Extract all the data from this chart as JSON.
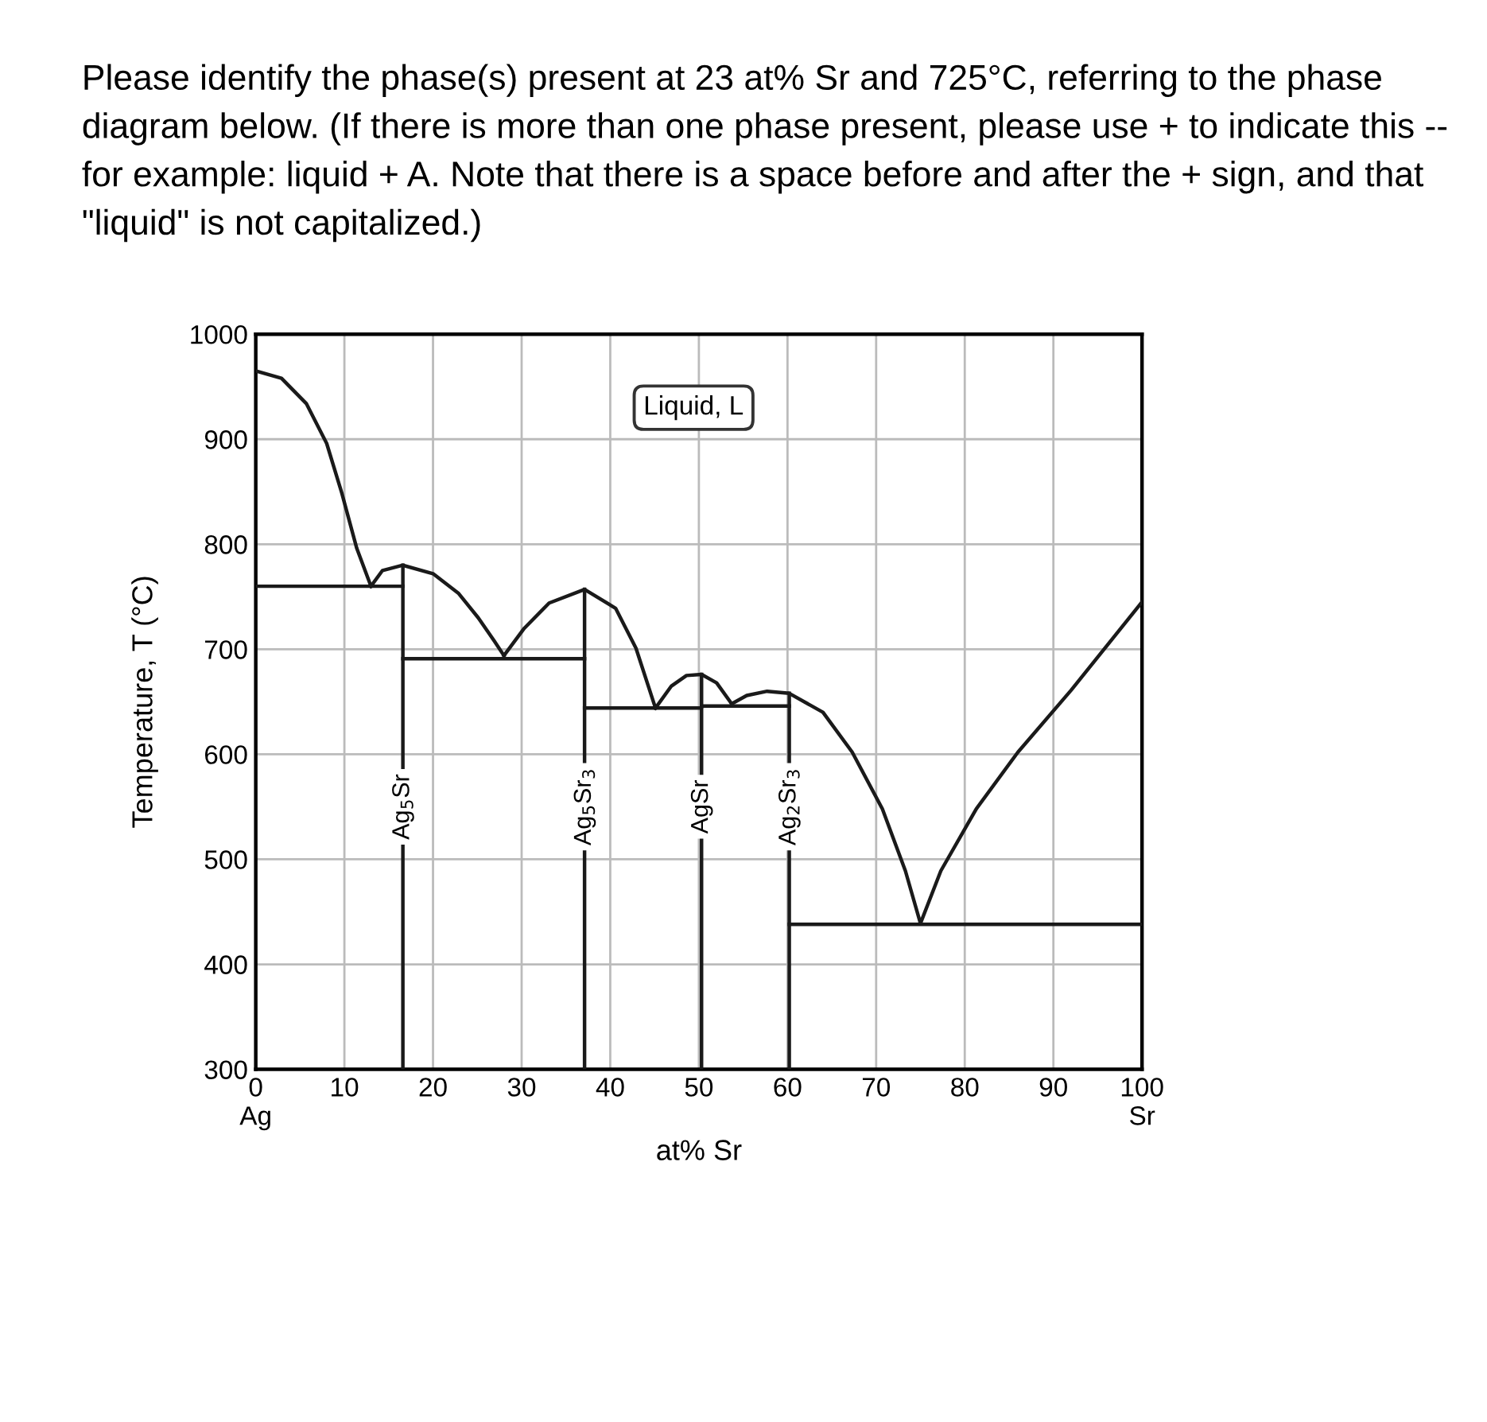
{
  "chart_data": {
    "type": "line",
    "title": "Please identify the phase(s) present at 23 at% Sr and 725°C, referring to the phase diagram below. (If there is more than one phase present, please use + to indicate this -- for example: liquid + A. Note that there is a space before and after the + sign, and that \"liquid\" is not capitalized.)",
    "xlabel": "at% Sr",
    "ylabel": "Temperature, T (°C)",
    "xlim": [
      0,
      100
    ],
    "ylim": [
      300,
      1000
    ],
    "xticks": [
      {
        "value": 0,
        "label": "0\nAg"
      },
      10,
      20,
      30,
      40,
      50,
      60,
      70,
      80,
      90,
      {
        "value": 100,
        "label": "100\nSr"
      }
    ],
    "yticks": [
      300,
      400,
      500,
      600,
      700,
      800,
      900,
      1000
    ],
    "grid": true,
    "marker": "none",
    "line_style": "solid",
    "series": [
      {
        "color": "#1a1a1a",
        "x": [
          0,
          2.9,
          5.7,
          8,
          9.7,
          11.4,
          13
        ],
        "values": [
          965,
          958,
          934,
          896,
          849,
          796,
          760
        ]
      },
      {
        "color": "#1a1a1a",
        "x": [
          0,
          16.6
        ],
        "values": [
          760,
          760
        ]
      },
      {
        "color": "#1a1a1a",
        "x": [
          13,
          14.3,
          16.6,
          20,
          22.9,
          25.1,
          26.9,
          28
        ],
        "values": [
          760,
          775,
          780,
          772,
          753,
          730,
          708,
          694
        ]
      },
      {
        "color": "#1a1a1a",
        "x": [
          16.6,
          37.1
        ],
        "values": [
          691,
          691
        ]
      },
      {
        "color": "#1a1a1a",
        "x": [
          28,
          30.3,
          33.1,
          37.1,
          40.6,
          42.9,
          45.1
        ],
        "values": [
          694,
          720,
          744,
          757,
          739,
          701,
          644
        ]
      },
      {
        "color": "#1a1a1a",
        "x": [
          37.1,
          50.3,
          50.3,
          60.2
        ],
        "values": [
          644,
          644,
          646,
          646
        ]
      },
      {
        "color": "#1a1a1a",
        "x": [
          45.1,
          46.9,
          48.6,
          50.3,
          52,
          53.7
        ],
        "values": [
          644,
          665,
          675,
          676,
          668,
          648
        ]
      },
      {
        "color": "#1a1a1a",
        "x": [
          53.7,
          55.4,
          57.7,
          60.2,
          64,
          67.3,
          70.7,
          73.3,
          75
        ],
        "values": [
          648,
          656,
          660,
          658,
          640,
          602,
          548,
          489,
          439
        ]
      },
      {
        "color": "#1a1a1a",
        "x": [
          60.2,
          100
        ],
        "values": [
          438,
          438
        ]
      },
      {
        "color": "#1a1a1a",
        "x": [
          75,
          77.3,
          81.3,
          86,
          92,
          100
        ],
        "values": [
          439,
          489,
          548,
          602,
          661,
          745
        ]
      },
      {
        "color": "#1a1a1a",
        "x": [
          16.6,
          16.6
        ],
        "values": [
          300,
          780
        ]
      },
      {
        "color": "#1a1a1a",
        "x": [
          37.1,
          37.1
        ],
        "values": [
          300,
          757
        ]
      },
      {
        "color": "#1a1a1a",
        "x": [
          50.3,
          50.3
        ],
        "values": [
          300,
          676
        ]
      },
      {
        "color": "#1a1a1a",
        "x": [
          60.2,
          60.2
        ],
        "values": [
          300,
          658
        ]
      }
    ],
    "annotations": [
      "Liquid, L",
      {
        "text": "Ag$_{5}$Sr",
        "x": 16.6,
        "y": 550
      },
      {
        "text": "Ag$_{5}$Sr$_{3}$",
        "x": 37.1,
        "y": 550
      },
      {
        "text": "AgSr",
        "x": 50.3,
        "y": 550
      },
      {
        "text": "Ag$_{2}$Sr$_{3}$",
        "x": 60.2,
        "y": 550
      }
    ]
  }
}
